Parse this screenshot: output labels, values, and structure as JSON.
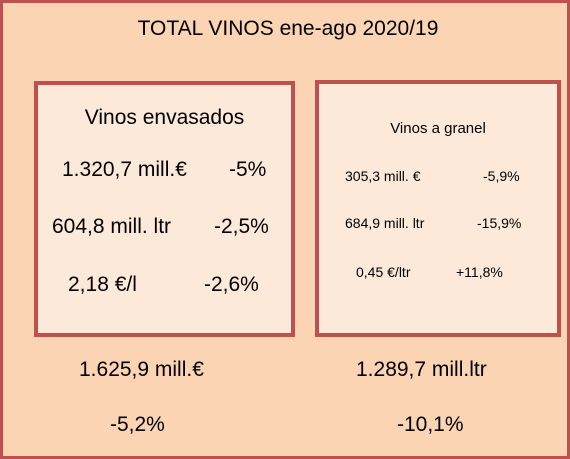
{
  "title": "TOTAL VINOS ene-ago 2020/19",
  "envasados": {
    "title": "Vinos envasados",
    "rows": [
      {
        "value": "1.320,7 mill.€",
        "change": "-5%"
      },
      {
        "value": "604,8 mill. ltr",
        "change": "-2,5%"
      },
      {
        "value": "2,18 €/l",
        "change": "-2,6%"
      }
    ]
  },
  "granel": {
    "title": "Vinos a granel",
    "rows": [
      {
        "value": "305,3 mill. €",
        "change": "-5,9%"
      },
      {
        "value": "684,9 mill. ltr",
        "change": "-15,9%"
      },
      {
        "value": "0,45 €/ltr",
        "change": "+11,8%"
      }
    ]
  },
  "totals": {
    "value_eur": "1.625,9 mill.€",
    "value_ltr": "1.289,7 mill.ltr",
    "change_eur": "-5,2%",
    "change_ltr": "-10,1%"
  },
  "colors": {
    "background": "#fbd4b4",
    "panel": "#fde9d9",
    "border": "#c0504d"
  }
}
